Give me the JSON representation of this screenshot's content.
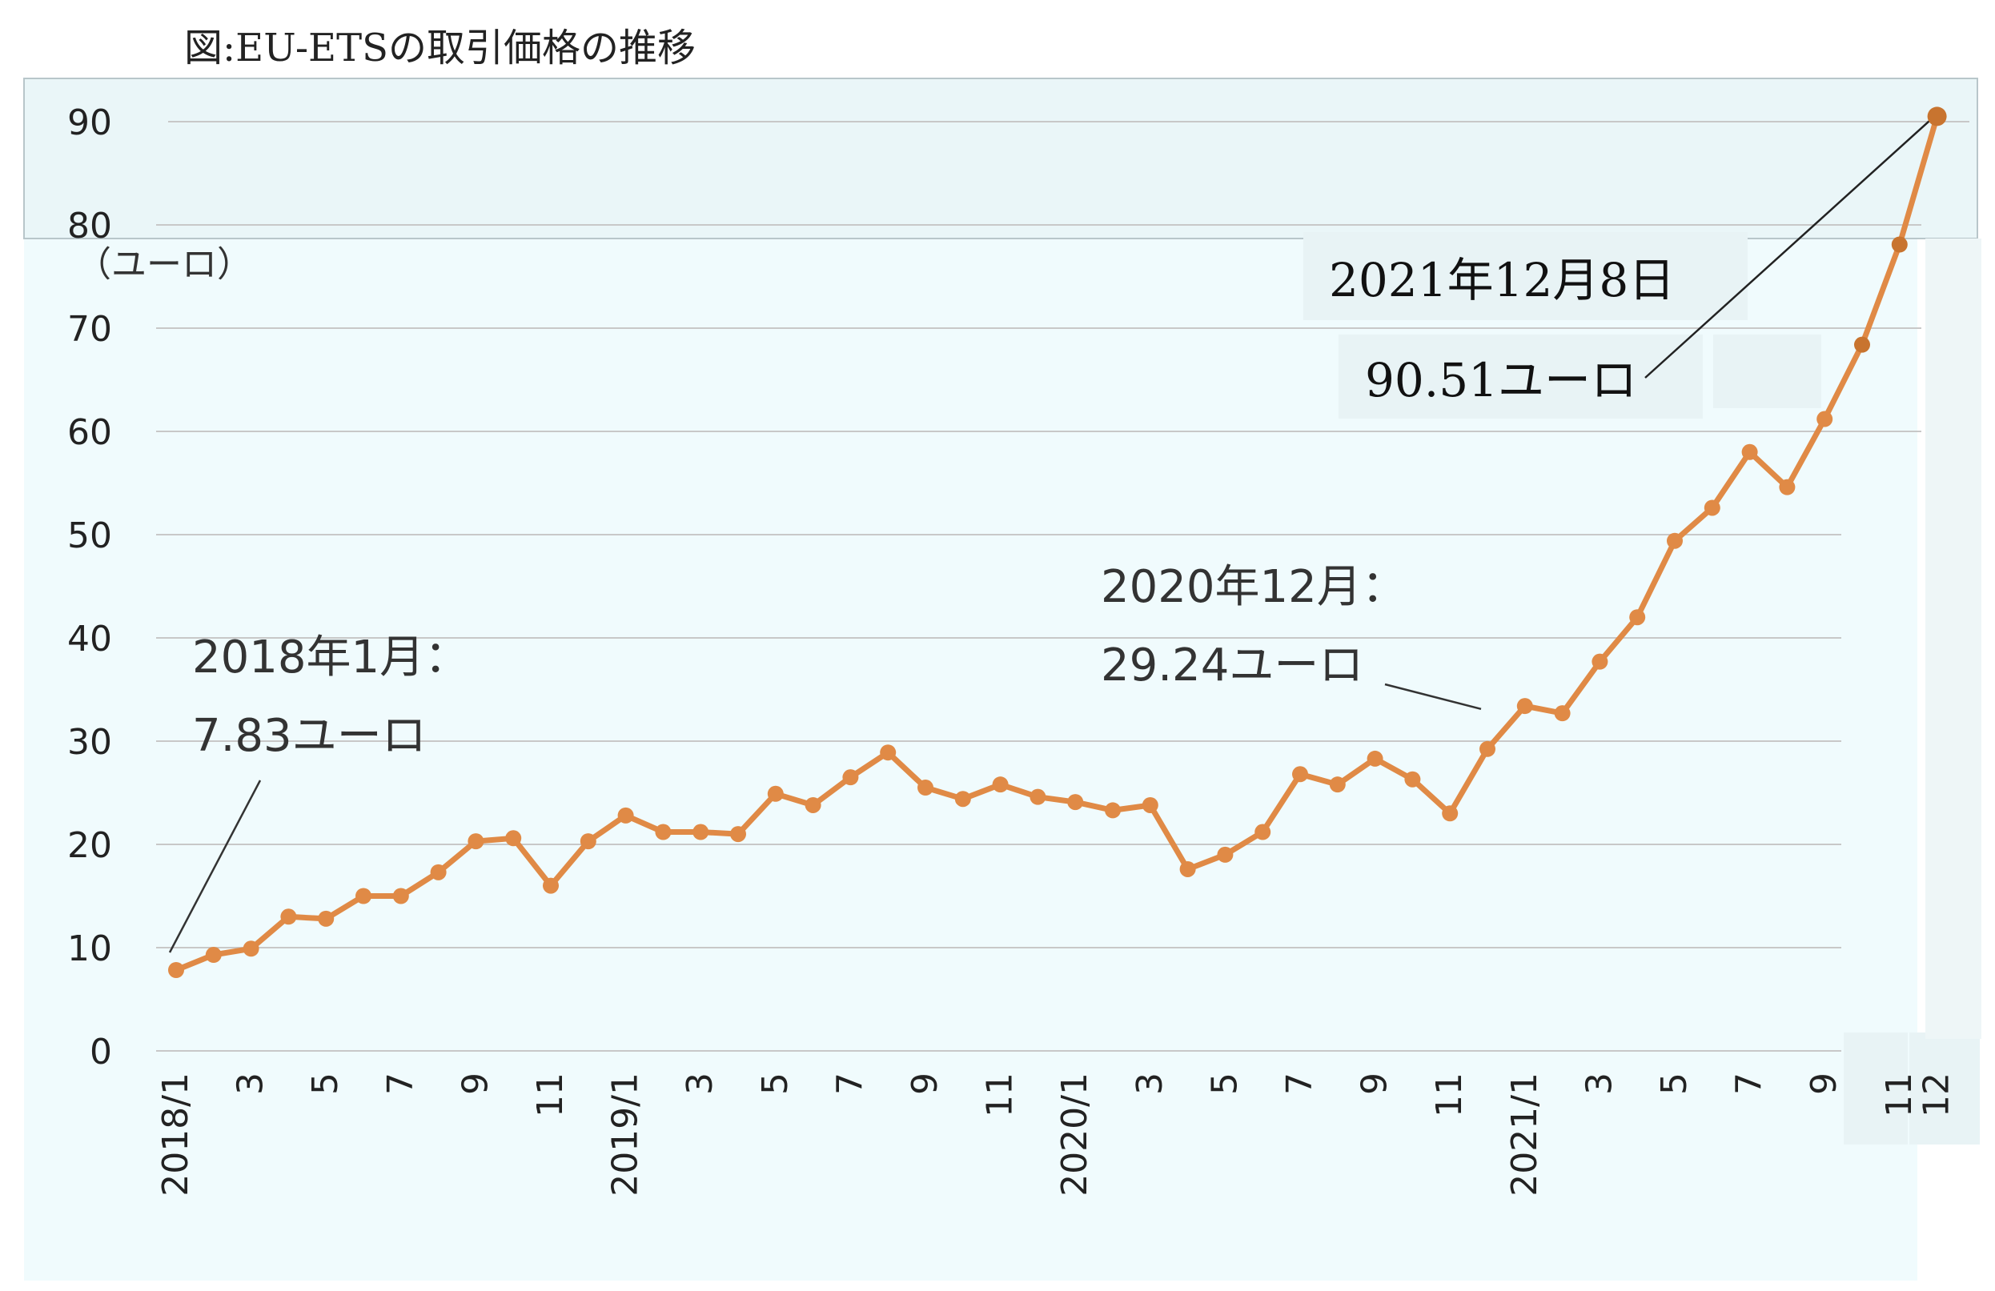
{
  "title": "図:EU-ETSの取引価格の推移",
  "chart_data": {
    "type": "line",
    "title": "図:EU-ETSの取引価格の推移",
    "ylabel": "（ユーロ）",
    "ylim": [
      0,
      90
    ],
    "yticks": [
      0,
      10,
      20,
      30,
      40,
      50,
      60,
      70,
      80,
      90
    ],
    "grid": true,
    "x": [
      "2018/1",
      "2018/2",
      "2018/3",
      "2018/4",
      "2018/5",
      "2018/6",
      "2018/7",
      "2018/8",
      "2018/9",
      "2018/10",
      "2018/11",
      "2018/12",
      "2019/1",
      "2019/2",
      "2019/3",
      "2019/4",
      "2019/5",
      "2019/6",
      "2019/7",
      "2019/8",
      "2019/9",
      "2019/10",
      "2019/11",
      "2019/12",
      "2020/1",
      "2020/2",
      "2020/3",
      "2020/4",
      "2020/5",
      "2020/6",
      "2020/7",
      "2020/8",
      "2020/9",
      "2020/10",
      "2020/11",
      "2020/12",
      "2021/1",
      "2021/2",
      "2021/3",
      "2021/4",
      "2021/5",
      "2021/6",
      "2021/7",
      "2021/8",
      "2021/9",
      "2021/10",
      "2021/11",
      "2021/12"
    ],
    "xticklabels": [
      "2018/1",
      "",
      "3",
      "",
      "5",
      "",
      "7",
      "",
      "9",
      "",
      "11",
      "",
      "2019/1",
      "",
      "3",
      "",
      "5",
      "",
      "7",
      "",
      "9",
      "",
      "11",
      "",
      "2020/1",
      "",
      "3",
      "",
      "5",
      "",
      "7",
      "",
      "9",
      "",
      "11",
      "",
      "2021/1",
      "",
      "3",
      "",
      "5",
      "",
      "7",
      "",
      "9",
      "",
      "11",
      "12"
    ],
    "values": [
      7.83,
      9.3,
      9.9,
      13.0,
      12.8,
      15.0,
      15.0,
      17.3,
      20.3,
      20.6,
      16.0,
      20.3,
      22.8,
      21.2,
      21.2,
      21.0,
      24.9,
      23.8,
      26.5,
      28.9,
      25.5,
      24.4,
      25.8,
      24.6,
      24.1,
      23.3,
      23.8,
      17.6,
      19.0,
      21.2,
      26.8,
      25.8,
      28.3,
      26.3,
      23.0,
      29.24,
      33.4,
      32.7,
      37.7,
      42.0,
      49.4,
      52.6,
      58.0,
      54.6,
      61.2,
      68.4,
      78.1,
      90.51
    ],
    "annotations": [
      {
        "line1": "2018年1月：",
        "line2": "7.83ユーロ",
        "index": 0
      },
      {
        "line1": "2020年12月：",
        "line2": "29.24ユーロ",
        "index": 35
      },
      {
        "line1": "2021年12月8日",
        "line2": "90.51ユーロ",
        "index": 47
      }
    ],
    "line_color": "#e08a46",
    "line_color_dark": "#c8742f",
    "grid_color": "#c8c8c8"
  }
}
